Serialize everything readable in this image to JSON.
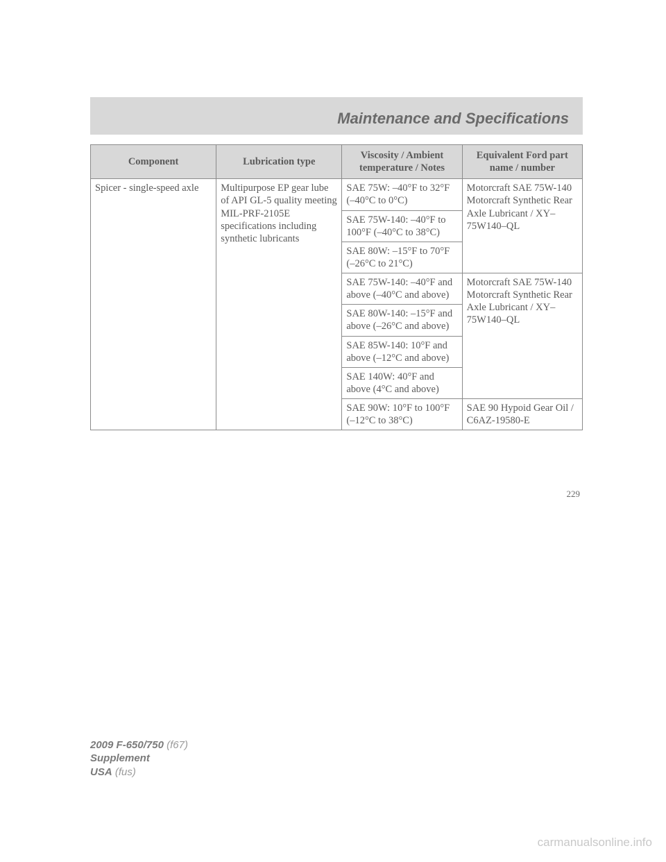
{
  "header": {
    "title": "Maintenance and Specifications"
  },
  "table": {
    "columns": [
      "Component",
      "Lubrication type",
      "Viscosity / Ambient temperature / Notes",
      "Equivalent Ford part name / number"
    ],
    "component": "Spicer - single-speed axle",
    "lubrication": "Multipurpose EP gear lube of API GL-5 quality meeting MIL-PRF-2105E specifications including synthetic lubricants",
    "viscosity": [
      "SAE 75W: –40°F to 32°F (–40°C to 0°C)",
      "SAE 75W-140: –40°F to 100°F (–40°C to 38°C)",
      "SAE 80W: –15°F to 70°F (–26°C to 21°C)",
      "SAE 75W-140: –40°F and above (–40°C and above)",
      "SAE 80W-140: –15°F and above (–26°C and above)",
      "SAE 85W-140: 10°F and above (–12°C and above)",
      "SAE 140W: 40°F and above (4°C and above)",
      "SAE 90W: 10°F to 100°F (–12°C to 38°C)"
    ],
    "equivalent": [
      "Motorcraft SAE 75W-140 Motorcraft Synthetic Rear Axle Lubricant / XY–75W140–QL",
      "Motorcraft SAE 75W-140 Motorcraft Synthetic Rear Axle Lubricant / XY–75W140–QL",
      "SAE 90 Hypoid Gear Oil / C6AZ-19580-E"
    ]
  },
  "page_number": "229",
  "footer": {
    "model": "2009 F-650/750",
    "model_code": "(f67)",
    "supplement": "Supplement",
    "region": "USA",
    "region_code": "(fus)"
  },
  "watermark": "carmanualsonline.info"
}
